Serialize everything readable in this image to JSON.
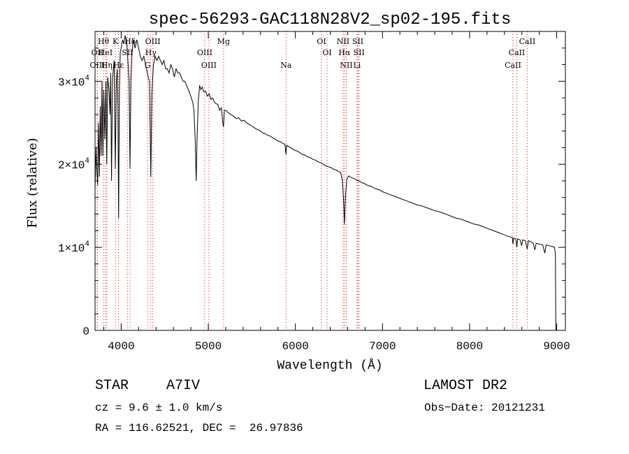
{
  "chart_data": {
    "type": "line",
    "title": "spec-56293-GAC118N28V2_sp02-195.fits",
    "xlabel": "Wavelength (Å)",
    "ylabel": "Flux (relative)",
    "xlim": [
      3700,
      9100
    ],
    "ylim": [
      0,
      36000
    ],
    "x_ticks": [
      4000,
      5000,
      6000,
      7000,
      8000,
      9000
    ],
    "x_tick_labels": [
      "4000",
      "5000",
      "6000",
      "7000",
      "8000",
      "9000"
    ],
    "x_minor_step": 200,
    "y_ticks": [
      0,
      10000,
      20000,
      30000
    ],
    "y_tick_labels": [
      {
        "mantissa": "0",
        "exp": ""
      },
      {
        "mantissa": "1×10",
        "exp": "4"
      },
      {
        "mantissa": "2×10",
        "exp": "4"
      },
      {
        "mantissa": "3×10",
        "exp": "4"
      }
    ],
    "y_minor_step": 2000,
    "series": [
      {
        "name": "spectrum",
        "color": "#000000",
        "points": [
          [
            3700,
            17000
          ],
          [
            3712,
            22000
          ],
          [
            3722,
            19000
          ],
          [
            3730,
            17500
          ],
          [
            3740,
            25000
          ],
          [
            3750,
            18500
          ],
          [
            3760,
            27000
          ],
          [
            3770,
            21000
          ],
          [
            3780,
            30000
          ],
          [
            3790,
            21000
          ],
          [
            3800,
            29000
          ],
          [
            3812,
            23000
          ],
          [
            3825,
            30000
          ],
          [
            3835,
            20000
          ],
          [
            3845,
            30500
          ],
          [
            3860,
            29000
          ],
          [
            3872,
            26000
          ],
          [
            3880,
            31000
          ],
          [
            3889,
            18000
          ],
          [
            3900,
            30000
          ],
          [
            3910,
            31500
          ],
          [
            3920,
            32500
          ],
          [
            3933,
            19500
          ],
          [
            3945,
            30000
          ],
          [
            3955,
            31500
          ],
          [
            3962,
            27000
          ],
          [
            3970,
            13500
          ],
          [
            3980,
            29000
          ],
          [
            3990,
            33500
          ],
          [
            4000,
            34000
          ],
          [
            4015,
            35000
          ],
          [
            4030,
            34500
          ],
          [
            4045,
            35500
          ],
          [
            4060,
            35000
          ],
          [
            4075,
            33000
          ],
          [
            4090,
            30000
          ],
          [
            4101,
            19500
          ],
          [
            4112,
            30000
          ],
          [
            4125,
            33500
          ],
          [
            4140,
            35000
          ],
          [
            4160,
            34000
          ],
          [
            4180,
            35000
          ],
          [
            4200,
            34000
          ],
          [
            4220,
            33000
          ],
          [
            4240,
            32500
          ],
          [
            4260,
            33000
          ],
          [
            4280,
            32000
          ],
          [
            4300,
            31000
          ],
          [
            4310,
            30500
          ],
          [
            4325,
            30000
          ],
          [
            4340,
            18500
          ],
          [
            4352,
            28500
          ],
          [
            4370,
            32000
          ],
          [
            4390,
            33000
          ],
          [
            4410,
            32500
          ],
          [
            4430,
            33000
          ],
          [
            4450,
            32500
          ],
          [
            4470,
            32000
          ],
          [
            4490,
            32500
          ],
          [
            4510,
            31500
          ],
          [
            4530,
            31500
          ],
          [
            4550,
            31000
          ],
          [
            4570,
            32000
          ],
          [
            4590,
            31500
          ],
          [
            4610,
            30500
          ],
          [
            4630,
            31500
          ],
          [
            4650,
            31000
          ],
          [
            4670,
            31000
          ],
          [
            4690,
            30500
          ],
          [
            4710,
            30000
          ],
          [
            4730,
            30000
          ],
          [
            4750,
            29500
          ],
          [
            4770,
            29000
          ],
          [
            4790,
            28500
          ],
          [
            4805,
            28000
          ],
          [
            4820,
            27500
          ],
          [
            4835,
            26500
          ],
          [
            4850,
            23000
          ],
          [
            4861,
            18000
          ],
          [
            4872,
            23500
          ],
          [
            4885,
            27500
          ],
          [
            4900,
            29500
          ],
          [
            4915,
            29000
          ],
          [
            4930,
            29300
          ],
          [
            4950,
            28700
          ],
          [
            4970,
            28800
          ],
          [
            4990,
            28200
          ],
          [
            5010,
            28500
          ],
          [
            5030,
            27800
          ],
          [
            5050,
            28000
          ],
          [
            5070,
            27500
          ],
          [
            5090,
            27300
          ],
          [
            5110,
            27200
          ],
          [
            5130,
            26500
          ],
          [
            5150,
            26800
          ],
          [
            5167,
            25000
          ],
          [
            5175,
            24500
          ],
          [
            5185,
            26500
          ],
          [
            5200,
            26500
          ],
          [
            5230,
            26200
          ],
          [
            5260,
            26000
          ],
          [
            5290,
            25800
          ],
          [
            5320,
            25500
          ],
          [
            5350,
            25600
          ],
          [
            5380,
            25200
          ],
          [
            5410,
            25300
          ],
          [
            5440,
            25000
          ],
          [
            5470,
            24800
          ],
          [
            5500,
            24600
          ],
          [
            5530,
            24400
          ],
          [
            5560,
            24200
          ],
          [
            5590,
            24100
          ],
          [
            5620,
            23800
          ],
          [
            5650,
            23700
          ],
          [
            5680,
            23500
          ],
          [
            5710,
            23400
          ],
          [
            5740,
            23200
          ],
          [
            5770,
            23000
          ],
          [
            5800,
            22800
          ],
          [
            5830,
            22700
          ],
          [
            5860,
            22500
          ],
          [
            5880,
            22400
          ],
          [
            5892,
            21200
          ],
          [
            5900,
            22300
          ],
          [
            5930,
            22100
          ],
          [
            5960,
            21900
          ],
          [
            5990,
            21700
          ],
          [
            6020,
            21600
          ],
          [
            6050,
            21400
          ],
          [
            6080,
            21200
          ],
          [
            6110,
            21100
          ],
          [
            6140,
            20900
          ],
          [
            6170,
            20800
          ],
          [
            6200,
            20600
          ],
          [
            6230,
            20500
          ],
          [
            6260,
            20300
          ],
          [
            6290,
            20200
          ],
          [
            6320,
            20000
          ],
          [
            6350,
            19800
          ],
          [
            6380,
            19700
          ],
          [
            6410,
            19600
          ],
          [
            6440,
            19400
          ],
          [
            6470,
            19300
          ],
          [
            6500,
            19100
          ],
          [
            6520,
            19000
          ],
          [
            6540,
            18000
          ],
          [
            6552,
            16000
          ],
          [
            6563,
            12800
          ],
          [
            6574,
            16000
          ],
          [
            6590,
            18200
          ],
          [
            6610,
            18600
          ],
          [
            6640,
            18400
          ],
          [
            6670,
            18300
          ],
          [
            6700,
            18100
          ],
          [
            6730,
            18000
          ],
          [
            6760,
            17800
          ],
          [
            6790,
            17700
          ],
          [
            6820,
            17500
          ],
          [
            6850,
            17400
          ],
          [
            6880,
            17300
          ],
          [
            6910,
            17100
          ],
          [
            6940,
            17000
          ],
          [
            6970,
            16900
          ],
          [
            7000,
            16700
          ],
          [
            7050,
            16500
          ],
          [
            7100,
            16300
          ],
          [
            7150,
            16100
          ],
          [
            7200,
            15900
          ],
          [
            7250,
            15700
          ],
          [
            7300,
            15500
          ],
          [
            7350,
            15300
          ],
          [
            7400,
            15100
          ],
          [
            7450,
            15000
          ],
          [
            7500,
            14800
          ],
          [
            7550,
            14600
          ],
          [
            7600,
            14400
          ],
          [
            7650,
            14300
          ],
          [
            7700,
            14100
          ],
          [
            7750,
            13900
          ],
          [
            7800,
            13700
          ],
          [
            7850,
            13500
          ],
          [
            7900,
            13400
          ],
          [
            7950,
            13200
          ],
          [
            8000,
            13000
          ],
          [
            8050,
            12800
          ],
          [
            8100,
            12700
          ],
          [
            8150,
            12500
          ],
          [
            8200,
            12300
          ],
          [
            8250,
            12100
          ],
          [
            8300,
            11900
          ],
          [
            8350,
            11700
          ],
          [
            8400,
            11500
          ],
          [
            8450,
            11300
          ],
          [
            8490,
            11200
          ],
          [
            8498,
            10400
          ],
          [
            8506,
            11100
          ],
          [
            8530,
            11000
          ],
          [
            8542,
            10000
          ],
          [
            8552,
            11000
          ],
          [
            8580,
            10900
          ],
          [
            8598,
            10200
          ],
          [
            8610,
            10900
          ],
          [
            8640,
            10800
          ],
          [
            8662,
            9800
          ],
          [
            8675,
            10800
          ],
          [
            8700,
            10700
          ],
          [
            8730,
            10500
          ],
          [
            8750,
            9700
          ],
          [
            8765,
            10500
          ],
          [
            8800,
            10400
          ],
          [
            8840,
            10300
          ],
          [
            8863,
            9300
          ],
          [
            8880,
            10300
          ],
          [
            8910,
            10200
          ],
          [
            8950,
            10100
          ],
          [
            8975,
            10000
          ],
          [
            8985,
            9200
          ],
          [
            8990,
            0
          ]
        ]
      }
    ],
    "lines": [
      {
        "name": "Hθ",
        "wavelength": 3797,
        "row": 1
      },
      {
        "name": "OII",
        "wavelength": 3727,
        "row": 2
      },
      {
        "name": "OIII",
        "wavelength": 3727,
        "row": 3
      },
      {
        "name": "HeI",
        "wavelength": 3820,
        "row": 2
      },
      {
        "name": "Hη",
        "wavelength": 3835,
        "row": 3
      },
      {
        "name": "K",
        "wavelength": 3934,
        "row": 1
      },
      {
        "name": "Hε",
        "wavelength": 3970,
        "row": 3
      },
      {
        "name": "SII",
        "wavelength": 4072,
        "row": 2
      },
      {
        "name": "Hδ",
        "wavelength": 4102,
        "row": 1
      },
      {
        "name": "OIII",
        "wavelength": 4363,
        "row": 1
      },
      {
        "name": "Hγ",
        "wavelength": 4340,
        "row": 2
      },
      {
        "name": "G",
        "wavelength": 4304,
        "row": 3
      },
      {
        "name": "OIII",
        "wavelength": 4959,
        "row": 2
      },
      {
        "name": "OIII",
        "wavelength": 5007,
        "row": 3
      },
      {
        "name": "Mg",
        "wavelength": 5175,
        "row": 1
      },
      {
        "name": "Na",
        "wavelength": 5893,
        "row": 3
      },
      {
        "name": "OI",
        "wavelength": 6300,
        "row": 1
      },
      {
        "name": "OI",
        "wavelength": 6364,
        "row": 2
      },
      {
        "name": "NII",
        "wavelength": 6548,
        "row": 1
      },
      {
        "name": "NII",
        "wavelength": 6584,
        "row": 3
      },
      {
        "name": "Hα",
        "wavelength": 6563,
        "row": 2
      },
      {
        "name": "SII",
        "wavelength": 6717,
        "row": 1
      },
      {
        "name": "SII",
        "wavelength": 6731,
        "row": 2
      },
      {
        "name": "Li",
        "wavelength": 6708,
        "row": 3
      },
      {
        "name": "CaII",
        "wavelength": 8498,
        "row": 3
      },
      {
        "name": "CaII",
        "wavelength": 8542,
        "row": 2
      },
      {
        "name": "CaII",
        "wavelength": 8662,
        "row": 1
      }
    ],
    "line_color": "#e01010"
  },
  "info": {
    "object_type": "STAR",
    "subclass": "A7IV",
    "survey": "LAMOST DR2",
    "cz_line": "cz = 9.6 ± 1.0 km/s",
    "obs_date_line": "Obs−Date: 20121231",
    "coord_line": "RA = 116.62521, DEC =  26.97836"
  }
}
